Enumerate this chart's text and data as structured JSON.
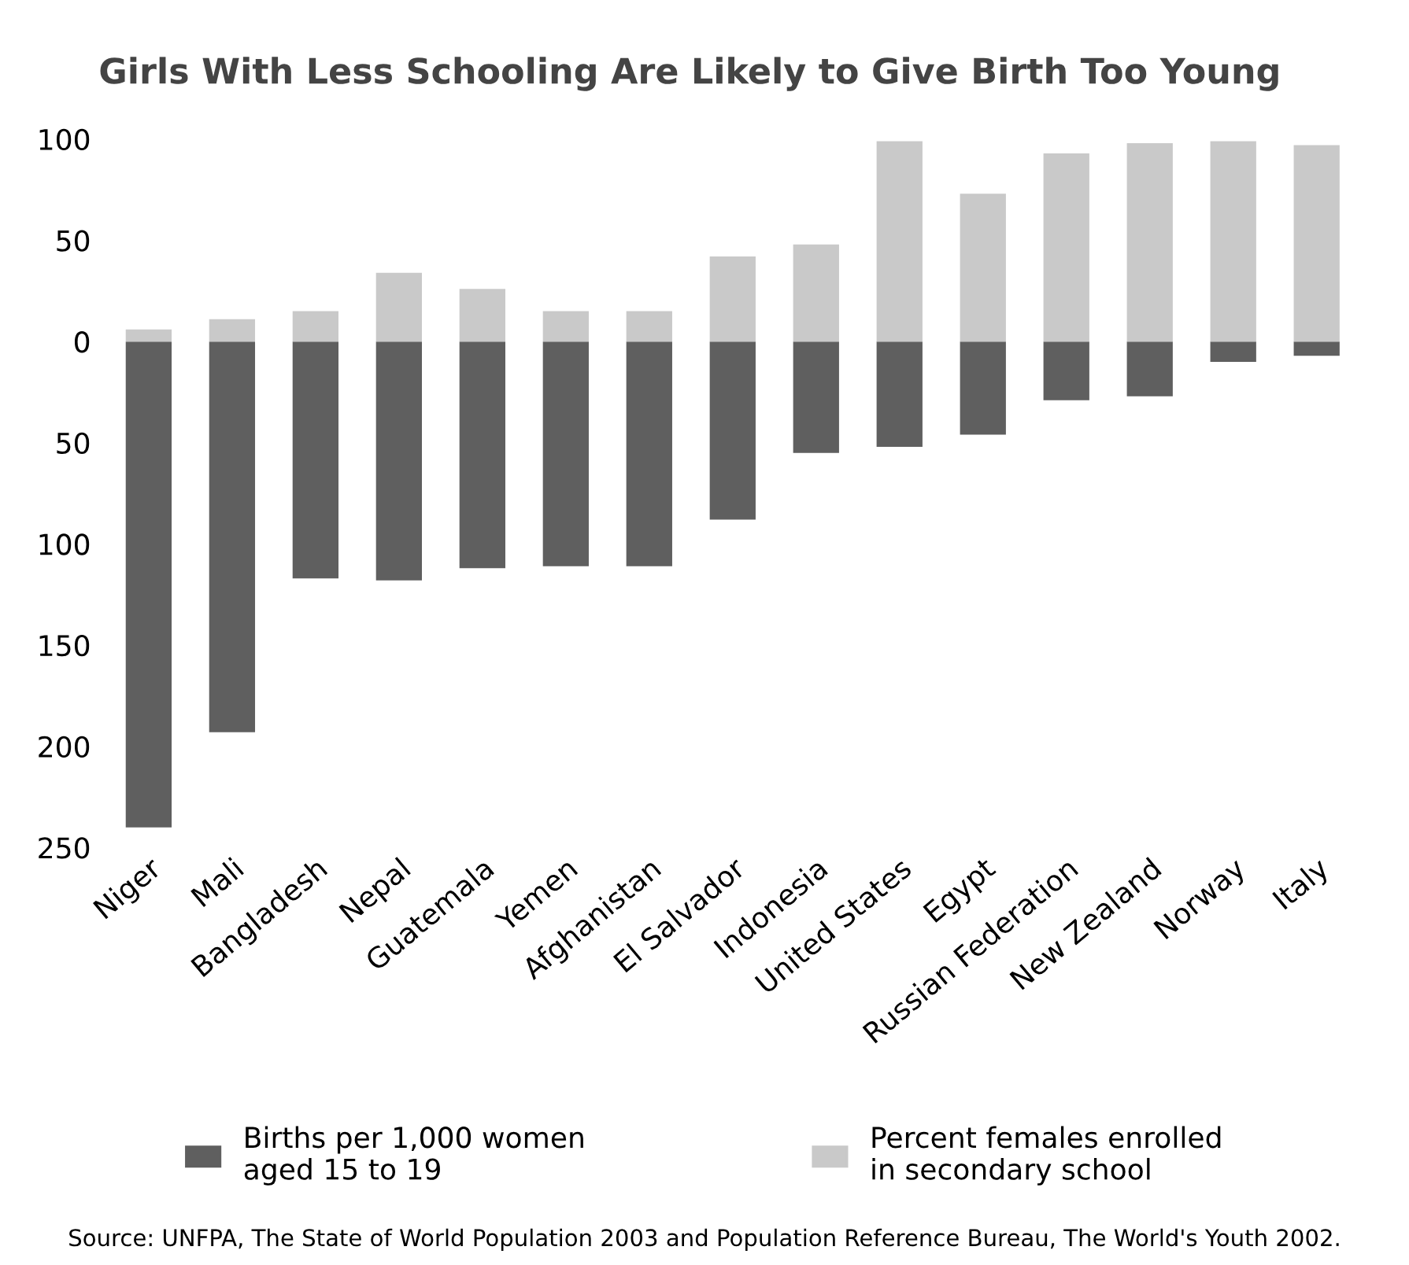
{
  "chart_data": {
    "type": "bar",
    "title": "Girls With Less Schooling Are Likely to Give Birth Too Young",
    "categories": [
      "Niger",
      "Mali",
      "Bangladesh",
      "Nepal",
      "Guatemala",
      "Yemen",
      "Afghanistan",
      "El Salvador",
      "Indonesia",
      "United States",
      "Egypt",
      "Russian Federation",
      "New Zealand",
      "Norway",
      "Italy"
    ],
    "series": [
      {
        "name": "Births per 1,000 women aged 15 to 19",
        "color": "#5f5f5f",
        "values": [
          -240,
          -193,
          -117,
          -118,
          -112,
          -111,
          -111,
          -88,
          -55,
          -52,
          -46,
          -29,
          -27,
          -10,
          -7
        ]
      },
      {
        "name": "Percent females enrolled in secondary school",
        "color": "#c9c9c9",
        "values": [
          6,
          11,
          15,
          34,
          26,
          15,
          15,
          42,
          48,
          99,
          73,
          93,
          98,
          99,
          97
        ]
      }
    ],
    "ylim": [
      -250,
      100
    ],
    "yticks": [
      100,
      50,
      0,
      {
        "value": -50,
        "label": "50"
      },
      {
        "value": -100,
        "label": "100"
      },
      {
        "value": -150,
        "label": "150"
      },
      {
        "value": -200,
        "label": "200"
      },
      {
        "value": -250,
        "label": "250"
      }
    ],
    "grid": false,
    "legend": "bottom",
    "stacked": true,
    "annotations": [
      "Source: UNFPA, The State of World Population 2003 and Population Reference Bureau, The World's Youth 2002."
    ]
  }
}
